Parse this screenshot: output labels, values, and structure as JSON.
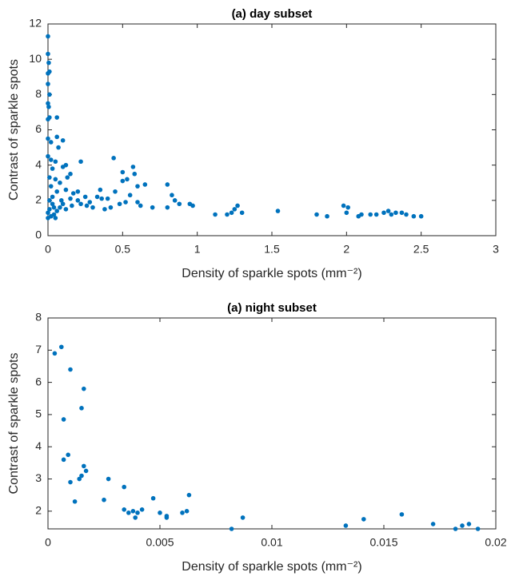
{
  "chart_data": [
    {
      "type": "scatter",
      "title": "(a) day subset",
      "xlabel": "Density of sparkle spots (mm⁻²)",
      "ylabel": "Contrast of sparkle spots",
      "color": "#0072bd",
      "x": [
        0,
        0,
        0.005,
        0.01,
        0,
        0,
        0.01,
        0,
        0.005,
        0.01,
        0.06,
        0,
        0,
        0.02,
        0.06,
        0.1,
        0.07,
        0,
        0.02,
        0.05,
        0.12,
        0.03,
        0.1,
        0.15,
        0.22,
        0.01,
        0.05,
        0.08,
        0.13,
        0.02,
        0.06,
        0.12,
        0.17,
        0.2,
        0.25,
        0.03,
        0.09,
        0.15,
        0.2,
        0.28,
        0.35,
        0.33,
        0.36,
        0.4,
        0.44,
        0.5,
        0.5,
        0.53,
        0.57,
        0.58,
        0.6,
        0.65,
        0.45,
        0.55,
        0.3,
        0.38,
        0.42,
        0.48,
        0.52,
        0.6,
        0.62,
        0.7,
        0.8,
        0.83,
        0.85,
        0.8,
        0.88,
        0.95,
        0.97,
        1.12,
        1.2,
        1.23,
        1.25,
        1.27,
        1.3,
        1.54,
        1.8,
        1.87,
        1.98,
        2,
        2.01,
        2.08,
        2.1,
        2.16,
        2.2,
        2.25,
        2.28,
        2.3,
        2.33,
        2.37,
        2.4,
        2.45,
        2.5,
        0,
        0.02,
        0.04,
        0.06,
        0.08,
        0.1,
        0.01,
        0.03,
        0.05,
        0.12,
        0.16,
        0.22,
        0.26,
        0,
        0.01,
        0.04
      ],
      "values": [
        11.3,
        10.3,
        9.8,
        9.3,
        9.2,
        8.6,
        8,
        7.5,
        7.3,
        6.7,
        6.7,
        6.6,
        5.5,
        5.3,
        5.6,
        5.4,
        5,
        4.5,
        4.3,
        4.2,
        4,
        3.8,
        3.9,
        3.5,
        4.2,
        3.3,
        3.2,
        3,
        3.3,
        2.8,
        2.5,
        2.6,
        2.4,
        2.5,
        2.2,
        2.2,
        2,
        2.1,
        2,
        1.9,
        2.6,
        2.2,
        2.1,
        2.1,
        4.4,
        3.6,
        3.1,
        3.2,
        3.9,
        3.5,
        2.8,
        2.9,
        2.5,
        2.3,
        1.6,
        1.5,
        1.6,
        1.8,
        1.9,
        1.9,
        1.7,
        1.6,
        2.9,
        2.3,
        2,
        1.6,
        1.8,
        1.8,
        1.7,
        1.2,
        1.2,
        1.3,
        1.5,
        1.7,
        1.3,
        1.4,
        1.2,
        1.1,
        1.7,
        1.3,
        1.6,
        1.1,
        1.2,
        1.2,
        1.2,
        1.3,
        1.4,
        1.2,
        1.3,
        1.3,
        1.2,
        1.1,
        1.1,
        1,
        1.1,
        1.2,
        1.4,
        1.6,
        1.8,
        1.5,
        1.8,
        1,
        1.5,
        1.7,
        1.8,
        1.7,
        1.3,
        2,
        1.6
      ],
      "xlim": [
        0,
        3
      ],
      "ylim": [
        0,
        12
      ],
      "xticks": [
        0,
        0.5,
        1,
        1.5,
        2,
        2.5,
        3
      ],
      "yticks": [
        0,
        2,
        4,
        6,
        8,
        10,
        12
      ]
    },
    {
      "type": "scatter",
      "title": "(a) night subset",
      "xlabel": "Density of sparkle spots (mm⁻²)",
      "ylabel": "Contrast of sparkle spots",
      "color": "#0072bd",
      "x": [
        0.0003,
        0.0006,
        0.001,
        0.0007,
        0.0015,
        0.0016,
        0.0007,
        0.0009,
        0.001,
        0.0012,
        0.0014,
        0.0015,
        0.0016,
        0.0017,
        0.0025,
        0.0027,
        0.0034,
        0.0034,
        0.0036,
        0.0038,
        0.0039,
        0.004,
        0.0042,
        0.0047,
        0.005,
        0.0053,
        0.0053,
        0.006,
        0.0062,
        0.0063,
        0.0082,
        0.0087,
        0.0133,
        0.0141,
        0.0158,
        0.0172,
        0.0182,
        0.0185,
        0.0188,
        0.0192
      ],
      "values": [
        6.9,
        7.1,
        6.4,
        4.85,
        5.2,
        5.8,
        3.6,
        3.75,
        2.9,
        2.3,
        3,
        3.1,
        3.4,
        3.25,
        2.35,
        3,
        2.75,
        2.05,
        1.95,
        2,
        1.8,
        1.95,
        2.05,
        2.4,
        1.95,
        1.85,
        1.8,
        1.95,
        2,
        2.5,
        1.45,
        1.8,
        1.55,
        1.75,
        1.9,
        1.6,
        1.45,
        1.55,
        1.6,
        1.45
      ],
      "xlim": [
        0,
        0.02
      ],
      "ylim": [
        1.45,
        8
      ],
      "xticks": [
        0,
        0.005,
        0.01,
        0.015,
        0.02
      ],
      "yticks": [
        2,
        3,
        4,
        5,
        6,
        7,
        8
      ]
    }
  ]
}
